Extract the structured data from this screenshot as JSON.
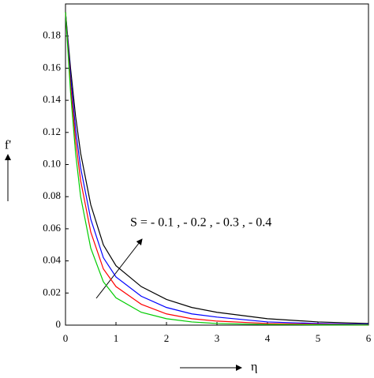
{
  "chart_data": {
    "type": "line",
    "ylabel": "f'",
    "xlabel": "η",
    "annotation": "S = - 0.1 , - 0.2 , - 0.3 , - 0.4",
    "x": [
      0,
      0.1,
      0.2,
      0.3,
      0.5,
      0.75,
      1,
      1.5,
      2,
      2.5,
      3,
      4,
      5,
      6
    ],
    "series": [
      {
        "color": "#000000",
        "values": [
          0.195,
          0.16,
          0.13,
          0.107,
          0.075,
          0.05,
          0.037,
          0.024,
          0.016,
          0.011,
          0.008,
          0.004,
          0.002,
          0.001
        ]
      },
      {
        "color": "#0000ff",
        "values": [
          0.195,
          0.155,
          0.122,
          0.098,
          0.066,
          0.042,
          0.03,
          0.018,
          0.011,
          0.007,
          0.005,
          0.002,
          0.001,
          0.0005
        ]
      },
      {
        "color": "#ff0000",
        "values": [
          0.195,
          0.15,
          0.115,
          0.09,
          0.058,
          0.035,
          0.024,
          0.013,
          0.007,
          0.004,
          0.0025,
          0.001,
          0.0005,
          0.0002
        ]
      },
      {
        "color": "#00cc00",
        "values": [
          0.195,
          0.145,
          0.107,
          0.08,
          0.048,
          0.027,
          0.017,
          0.008,
          0.004,
          0.002,
          0.001,
          0.0004,
          0.0002,
          0.0001
        ]
      }
    ],
    "xlim": [
      0,
      6
    ],
    "xticks": [
      0,
      1,
      2,
      3,
      4,
      5,
      6
    ],
    "ylim": [
      0,
      0.2
    ],
    "yticks": [
      0,
      0.02,
      0.04,
      0.06,
      0.08,
      {
        "value": 0.1,
        "label": "0.10"
      },
      0.12,
      0.14,
      0.16,
      0.18
    ]
  }
}
